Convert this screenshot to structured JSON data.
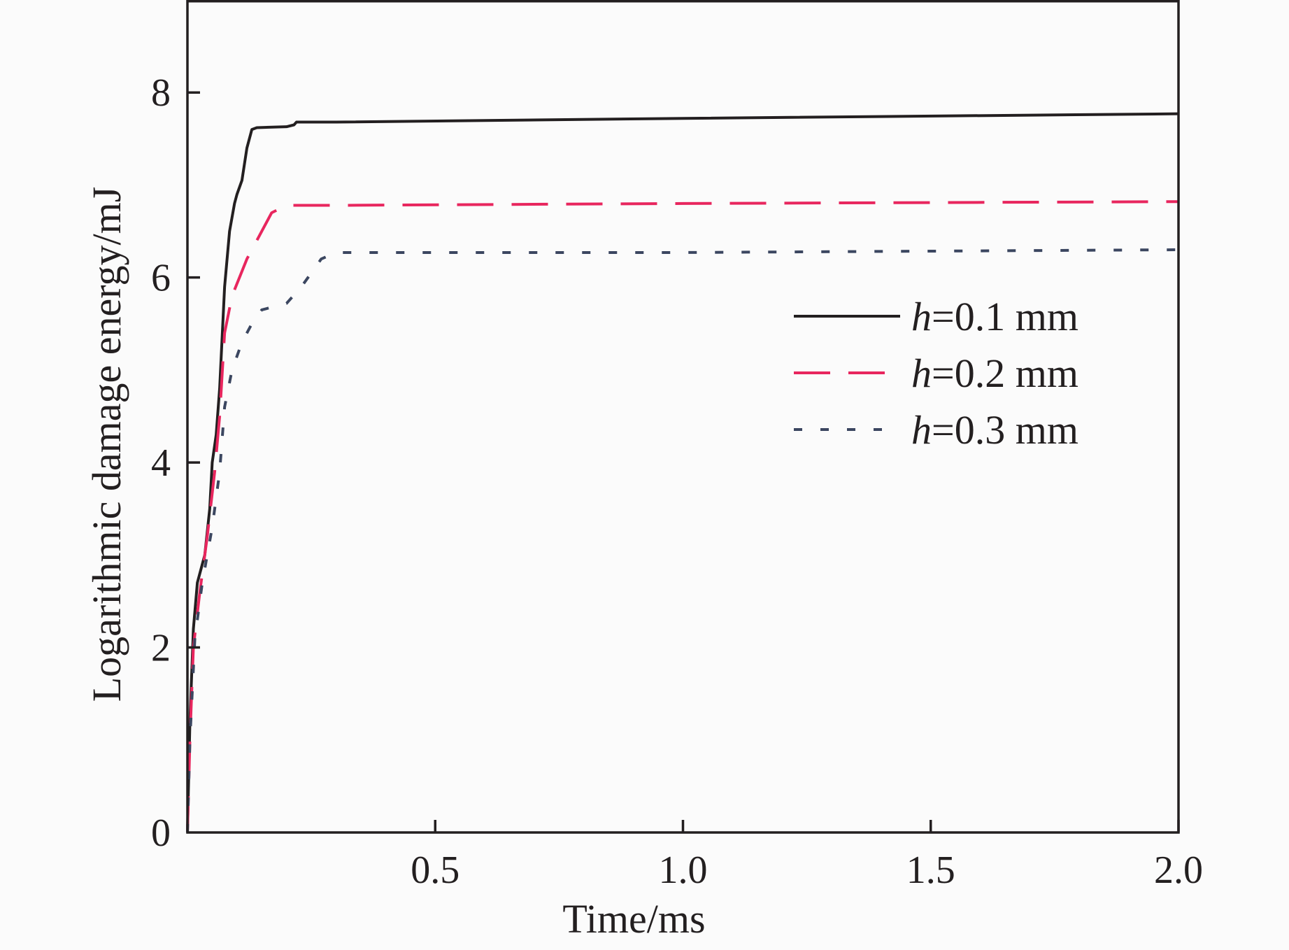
{
  "chart_data": {
    "type": "line",
    "title": "",
    "xlabel": "Time/ms",
    "ylabel": "Logarithmic damage energy/mJ",
    "xlim": [
      0,
      2.0
    ],
    "ylim": [
      0,
      9
    ],
    "xticks": [
      0.5,
      1.0,
      1.5,
      2.0
    ],
    "xtick_labels": [
      "0.5",
      "1.0",
      "1.5",
      "2.0"
    ],
    "yticks": [
      0,
      2,
      4,
      6,
      8
    ],
    "ytick_labels": [
      "0",
      "2",
      "4",
      "6",
      "8"
    ],
    "grid": false,
    "legend_position": "right-center",
    "series": [
      {
        "name": "h=0.1 mm",
        "name_var": "h",
        "name_rest": "=0.1 mm",
        "color": "#231f20",
        "dash": "solid",
        "points": [
          [
            0.0,
            0.0
          ],
          [
            0.005,
            1.2
          ],
          [
            0.012,
            2.2
          ],
          [
            0.02,
            2.7
          ],
          [
            0.035,
            3.0
          ],
          [
            0.045,
            3.5
          ],
          [
            0.05,
            4.0
          ],
          [
            0.058,
            4.3
          ],
          [
            0.065,
            4.8
          ],
          [
            0.075,
            5.9
          ],
          [
            0.085,
            6.5
          ],
          [
            0.095,
            6.8
          ],
          [
            0.1,
            6.9
          ],
          [
            0.11,
            7.05
          ],
          [
            0.12,
            7.4
          ],
          [
            0.13,
            7.6
          ],
          [
            0.14,
            7.62
          ],
          [
            0.2,
            7.63
          ],
          [
            0.215,
            7.65
          ],
          [
            0.22,
            7.68
          ],
          [
            0.3,
            7.68
          ],
          [
            1.0,
            7.72
          ],
          [
            2.0,
            7.77
          ]
        ]
      },
      {
        "name": "h=0.2 mm",
        "name_var": "h",
        "name_rest": "=0.2 mm",
        "color": "#e8265e",
        "dash": "long-dash",
        "points": [
          [
            0.0,
            0.0
          ],
          [
            0.005,
            1.0
          ],
          [
            0.012,
            2.0
          ],
          [
            0.025,
            2.6
          ],
          [
            0.04,
            3.2
          ],
          [
            0.055,
            3.9
          ],
          [
            0.065,
            4.5
          ],
          [
            0.075,
            5.4
          ],
          [
            0.09,
            5.8
          ],
          [
            0.12,
            6.2
          ],
          [
            0.15,
            6.5
          ],
          [
            0.17,
            6.7
          ],
          [
            0.2,
            6.78
          ],
          [
            0.3,
            6.78
          ],
          [
            1.0,
            6.8
          ],
          [
            2.0,
            6.82
          ]
        ]
      },
      {
        "name": "h=0.3 mm",
        "name_var": "h",
        "name_rest": "=0.3 mm",
        "color": "#3b4660",
        "dash": "short-dash",
        "points": [
          [
            0.0,
            0.0
          ],
          [
            0.005,
            1.0
          ],
          [
            0.015,
            2.1
          ],
          [
            0.03,
            2.7
          ],
          [
            0.05,
            3.3
          ],
          [
            0.065,
            3.9
          ],
          [
            0.075,
            4.6
          ],
          [
            0.09,
            5.0
          ],
          [
            0.11,
            5.3
          ],
          [
            0.13,
            5.5
          ],
          [
            0.15,
            5.65
          ],
          [
            0.2,
            5.72
          ],
          [
            0.23,
            5.9
          ],
          [
            0.27,
            6.2
          ],
          [
            0.3,
            6.27
          ],
          [
            1.0,
            6.27
          ],
          [
            2.0,
            6.3
          ]
        ]
      }
    ]
  }
}
